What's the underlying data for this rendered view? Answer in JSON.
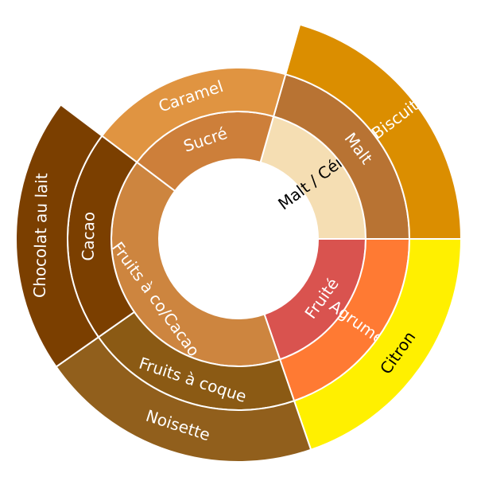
{
  "chart_data": {
    "type": "sunburst",
    "nodes": [
      {
        "label": "Malt / Céréal",
        "value": 74,
        "color": "#f5deb3",
        "children": [
          {
            "label": "Malt",
            "value": 74,
            "color": "#b87333",
            "children": [
              {
                "label": "Biscuit",
                "value": 74,
                "color": "#db8e00"
              }
            ]
          }
        ]
      },
      {
        "label": "Fruité",
        "value": 71,
        "color": "#d9534f",
        "children": [
          {
            "label": "Agrumes",
            "value": 71,
            "color": "#ff7a33",
            "children": [
              {
                "label": "Citron",
                "value": 71,
                "color": "#fff000"
              }
            ]
          }
        ]
      },
      {
        "label": "Fruits à co/Cacao",
        "value": 146,
        "color": "#cd853f",
        "children": [
          {
            "label": "Fruits à coque",
            "value": 74,
            "color": "#8b5a14",
            "children": [
              {
                "label": "Noisette",
                "value": 74,
                "color": "#915f1c"
              }
            ]
          },
          {
            "label": "Cacao",
            "value": 72,
            "color": "#7b3f00",
            "children": [
              {
                "label": "Chocolat au lait",
                "value": 72,
                "color": "#7b3f00"
              }
            ]
          }
        ]
      },
      {
        "label": "Sucré",
        "value": 69,
        "color": "#cd7f3a",
        "children": [
          {
            "label": "Caramel",
            "value": 69,
            "color": "#e09441"
          }
        ]
      }
    ]
  }
}
